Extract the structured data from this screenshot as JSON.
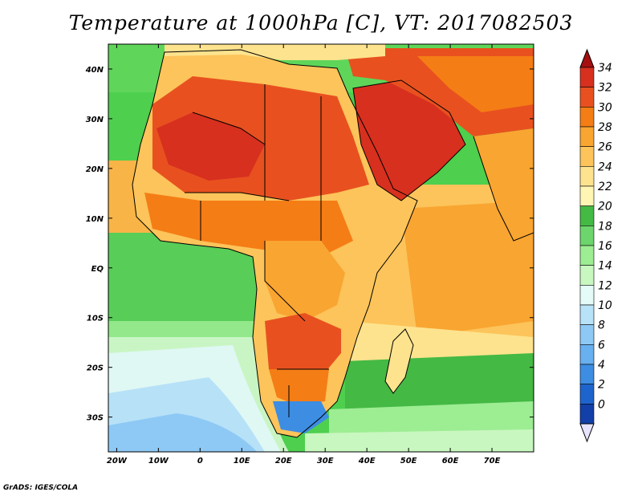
{
  "title": "Temperature at 1000hPa [C], VT: 2017082503",
  "credit": "GrADS: IGES/COLA",
  "map": {
    "lon_range": [
      -22,
      80
    ],
    "lat_range": [
      -37,
      45
    ],
    "lat_ticks": [
      {
        "value": 40,
        "label": "40N"
      },
      {
        "value": 30,
        "label": "30N"
      },
      {
        "value": 20,
        "label": "20N"
      },
      {
        "value": 10,
        "label": "10N"
      },
      {
        "value": 0,
        "label": "EQ"
      },
      {
        "value": -10,
        "label": "10S"
      },
      {
        "value": -20,
        "label": "20S"
      },
      {
        "value": -30,
        "label": "30S"
      }
    ],
    "lon_ticks": [
      {
        "value": -20,
        "label": "20W"
      },
      {
        "value": -10,
        "label": "10W"
      },
      {
        "value": 0,
        "label": "0"
      },
      {
        "value": 10,
        "label": "10E"
      },
      {
        "value": 20,
        "label": "20E"
      },
      {
        "value": 30,
        "label": "30E"
      },
      {
        "value": 40,
        "label": "40E"
      },
      {
        "value": 50,
        "label": "50E"
      },
      {
        "value": 60,
        "label": "60E"
      },
      {
        "value": 70,
        "label": "70E"
      }
    ]
  },
  "colorbar": {
    "levels": [
      "34",
      "32",
      "30",
      "28",
      "26",
      "24",
      "22",
      "20",
      "18",
      "16",
      "14",
      "12",
      "10",
      "8",
      "6",
      "4",
      "2",
      "0"
    ],
    "colors": [
      "#a50f0f",
      "#d7301f",
      "#e8511f",
      "#f57d15",
      "#f9a531",
      "#fcc45a",
      "#fde38e",
      "#fff6b4",
      "#44b944",
      "#6cd56c",
      "#9ded93",
      "#c9f7c0",
      "#e5fbf7",
      "#b8e2f8",
      "#8ec9f5",
      "#68b0ef",
      "#3d8de3",
      "#1e64cd",
      "#123fa8",
      "#0a1f80"
    ]
  }
}
